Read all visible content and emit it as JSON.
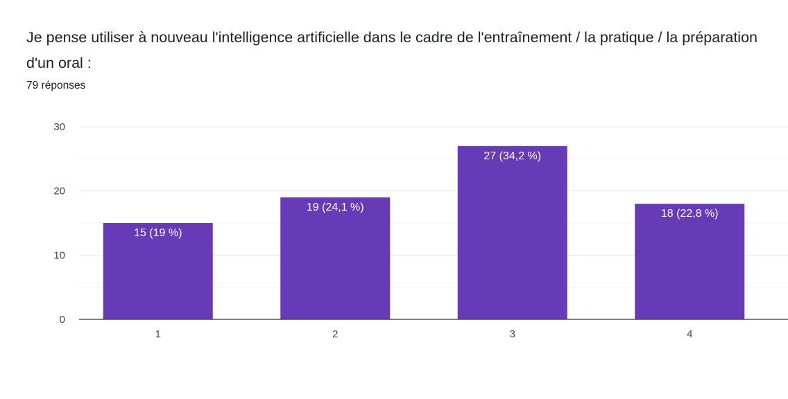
{
  "header": {
    "title": "Je pense utiliser à nouveau l'intelligence artificielle dans le cadre de l'entraînement / la pratique / la préparation d'un oral :",
    "responses": "79 réponses"
  },
  "colors": {
    "bar": "#673ab7"
  },
  "chart_data": {
    "type": "bar",
    "title": "",
    "xlabel": "",
    "ylabel": "",
    "categories": [
      "1",
      "2",
      "3",
      "4"
    ],
    "values": [
      15,
      19,
      27,
      18
    ],
    "data_labels": [
      "15 (19 %)",
      "19 (24,1 %)",
      "27 (34,2 %)",
      "18 (22,8 %)"
    ],
    "ylim": [
      0,
      30
    ],
    "yticks": [
      0,
      10,
      20,
      30
    ],
    "grid": true,
    "legend": "none"
  }
}
